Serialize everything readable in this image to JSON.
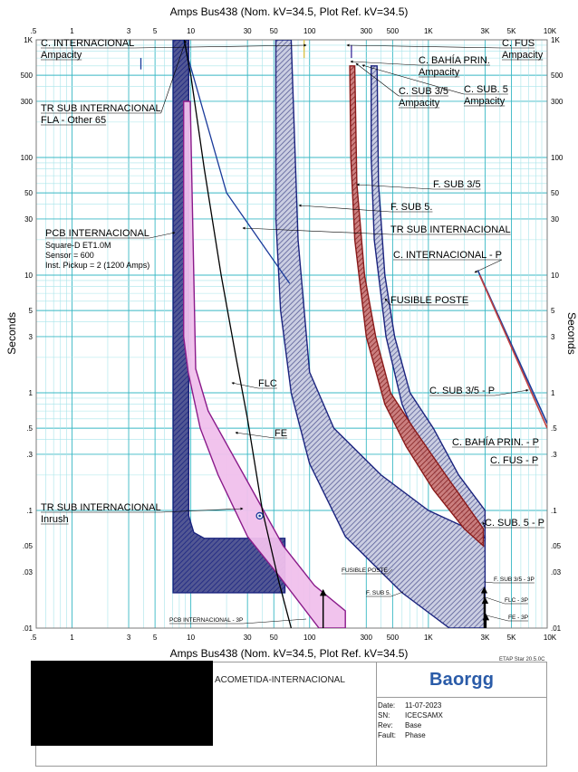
{
  "title": "Amps   Bus438 (Nom. kV=34.5, Plot Ref. kV=34.5)",
  "bottom_title": "Amps   Bus438 (Nom. kV=34.5, Plot Ref. kV=34.5)",
  "ylabel": "Seconds",
  "version": "ETAP Star 20.5.0C",
  "footer": {
    "project": "ACOMETIDA-INTERNACIONAL",
    "logo": "Baorgg",
    "date_label": "Date:",
    "date": "11-07-2023",
    "sn_label": "SN:",
    "sn": "ICECSAMX",
    "rev_label": "Rev:",
    "rev": "Base",
    "fault_label": "Fault:",
    "fault": "Phase"
  },
  "colors": {
    "grid_major": "#38b8c4",
    "grid_minor": "#a8e4ea",
    "navy": "#1a237e",
    "blue": "#1a3a9a",
    "purple": "#8a1a8a",
    "pink": "#f0c0ec",
    "darkred": "#8a1a1a",
    "hatch_light": "#8a8fb8"
  },
  "chart_data": {
    "type": "line",
    "x_scale": "log",
    "y_scale": "log",
    "xlim": [
      0.5,
      10000
    ],
    "ylim": [
      0.01,
      1000
    ],
    "x_ticks": [
      {
        "v": 0.5,
        "t": ".5"
      },
      {
        "v": 1,
        "t": "1"
      },
      {
        "v": 3,
        "t": "3"
      },
      {
        "v": 5,
        "t": "5"
      },
      {
        "v": 10,
        "t": "10"
      },
      {
        "v": 30,
        "t": "30"
      },
      {
        "v": 50,
        "t": "50"
      },
      {
        "v": 100,
        "t": "100"
      },
      {
        "v": 300,
        "t": "300"
      },
      {
        "v": 500,
        "t": "500"
      },
      {
        "v": 1000,
        "t": "1K"
      },
      {
        "v": 3000,
        "t": "3K"
      },
      {
        "v": 5000,
        "t": "5K"
      },
      {
        "v": 10000,
        "t": "10K"
      }
    ],
    "y_ticks": [
      {
        "v": 1000,
        "t": "1K"
      },
      {
        "v": 500,
        "t": "500"
      },
      {
        "v": 300,
        "t": "300"
      },
      {
        "v": 100,
        "t": "100"
      },
      {
        "v": 50,
        "t": "50"
      },
      {
        "v": 30,
        "t": "30"
      },
      {
        "v": 10,
        "t": "10"
      },
      {
        "v": 5,
        "t": "5"
      },
      {
        "v": 3,
        "t": "3"
      },
      {
        "v": 1,
        "t": "1"
      },
      {
        "v": 0.5,
        "t": ".5"
      },
      {
        "v": 0.3,
        "t": ".3"
      },
      {
        "v": 0.1,
        "t": ".1"
      },
      {
        "v": 0.05,
        "t": ".05"
      },
      {
        "v": 0.03,
        "t": ".03"
      },
      {
        "v": 0.01,
        "t": ".01"
      }
    ],
    "bands": [
      {
        "name": "PCB INTERNACIONAL",
        "color": "#1a237e",
        "fill": "hatch-navy",
        "points": [
          [
            7.1,
            1000
          ],
          [
            9.6,
            1000
          ],
          [
            9.6,
            0.09
          ],
          [
            10.6,
            0.065
          ],
          [
            13,
            0.058
          ],
          [
            62,
            0.058
          ],
          [
            62,
            0.02
          ],
          [
            7.1,
            0.02
          ]
        ]
      },
      {
        "name": "F. SUB 5.",
        "color": "#1a237e",
        "fill": "hatch-light",
        "points": [
          [
            52,
            1000
          ],
          [
            70,
            1000
          ],
          [
            80,
            20
          ],
          [
            100,
            1.5
          ],
          [
            160,
            0.5
          ],
          [
            400,
            0.2
          ],
          [
            1000,
            0.1
          ],
          [
            3000,
            0.06
          ],
          [
            3000,
            0.01
          ],
          [
            1500,
            0.01
          ],
          [
            600,
            0.02
          ],
          [
            200,
            0.06
          ],
          [
            100,
            0.25
          ],
          [
            70,
            1
          ],
          [
            57,
            5
          ],
          [
            52,
            30
          ]
        ]
      },
      {
        "name": "FUSIBLE POSTE",
        "color": "#1a237e",
        "fill": "hatch-light",
        "points": [
          [
            330,
            600
          ],
          [
            370,
            600
          ],
          [
            380,
            60
          ],
          [
            430,
            10
          ],
          [
            520,
            3
          ],
          [
            700,
            1
          ],
          [
            1100,
            0.5
          ],
          [
            1800,
            0.2
          ],
          [
            3000,
            0.1
          ],
          [
            3000,
            0.058
          ],
          [
            2200,
            0.08
          ],
          [
            1400,
            0.15
          ],
          [
            900,
            0.3
          ],
          [
            600,
            0.8
          ],
          [
            440,
            3
          ],
          [
            350,
            20
          ],
          [
            330,
            100
          ]
        ]
      },
      {
        "name": "F. SUB 3/5",
        "color": "#8a1a1a",
        "fill": "hatch-red",
        "points": [
          [
            218,
            600
          ],
          [
            240,
            600
          ],
          [
            250,
            60
          ],
          [
            290,
            10
          ],
          [
            360,
            3
          ],
          [
            480,
            1
          ],
          [
            750,
            0.5
          ],
          [
            1400,
            0.2
          ],
          [
            2900,
            0.07
          ],
          [
            2900,
            0.05
          ],
          [
            2000,
            0.07
          ],
          [
            1100,
            0.15
          ],
          [
            650,
            0.35
          ],
          [
            430,
            0.8
          ],
          [
            300,
            3
          ],
          [
            240,
            20
          ],
          [
            222,
            100
          ]
        ]
      },
      {
        "name": "FE",
        "color": "#8a1a8a",
        "fill": "#f0c0ec",
        "points": [
          [
            8.7,
            300
          ],
          [
            9.9,
            300
          ],
          [
            11,
            1.6
          ],
          [
            14,
            0.7
          ],
          [
            28,
            0.2
          ],
          [
            60,
            0.05
          ],
          [
            110,
            0.023
          ],
          [
            200,
            0.014
          ],
          [
            200,
            0.01
          ],
          [
            120,
            0.01
          ],
          [
            55,
            0.028
          ],
          [
            30,
            0.06
          ],
          [
            17,
            0.2
          ],
          [
            12,
            0.5
          ],
          [
            9.5,
            1.5
          ],
          [
            8.7,
            3
          ]
        ]
      }
    ],
    "curves": [
      {
        "name": "TR SUB INTERNACIONAL",
        "color": "#1a3a9a",
        "points": [
          [
            8.6,
            1000
          ],
          [
            20,
            50
          ],
          [
            68,
            8.5
          ]
        ]
      },
      {
        "name": "FLC",
        "color": "#000000",
        "points": [
          [
            8.8,
            1000
          ],
          [
            10,
            500
          ],
          [
            13,
            80
          ],
          [
            18,
            10
          ],
          [
            24,
            2
          ],
          [
            30,
            0.6
          ],
          [
            40,
            0.1
          ],
          [
            55,
            0.025
          ],
          [
            70,
            0.01
          ]
        ]
      },
      {
        "name": "C. INTERNACIONAL - P",
        "color": "#1a3a9a",
        "points": [
          [
            2600,
            11
          ],
          [
            10000,
            0.55
          ]
        ]
      },
      {
        "name": "C. SUB 3/5 - P",
        "color": "#c04040",
        "points": [
          [
            2700,
            10
          ],
          [
            10000,
            0.5
          ]
        ]
      },
      {
        "name": "FLA - Other 65",
        "color": "#1a3a9a",
        "points": [
          [
            3.8,
            700
          ],
          [
            3.8,
            560
          ]
        ]
      },
      {
        "name": "C. INTERNACIONAL Ampacity",
        "color": "#d9c040",
        "points": [
          [
            90,
            1000
          ],
          [
            90,
            700
          ]
        ]
      },
      {
        "name": "C. FUS Ampacity",
        "color": "#3a2a9a",
        "points": [
          [
            225,
            900
          ],
          [
            225,
            700
          ]
        ]
      }
    ],
    "inrush_point": {
      "name": "TR SUB INTERNACIONAL Inrush",
      "x": 38,
      "y": 0.09
    },
    "arrow_markers": [
      {
        "name": "PCB INTERNACIONAL - 3P",
        "x": 130,
        "y1": 0.01,
        "y2": 0.021
      },
      {
        "name": "F. SUB 3/5 - 3P",
        "x": 2950,
        "y1": 0.01,
        "y2": 0.022
      },
      {
        "name": "FLC - 3P",
        "x": 3000,
        "y1": 0.01,
        "y2": 0.018
      },
      {
        "name": "FE - 3P",
        "x": 3050,
        "y1": 0.01,
        "y2": 0.013
      }
    ],
    "annotations": [
      {
        "lines": [
          "C. INTERNACIONAL",
          "Ampacity"
        ],
        "x": 45,
        "y": 41,
        "underline": true,
        "anchor_x": 338,
        "anchor_y": 50
      },
      {
        "lines": [
          "TR SUB INTERNACIONAL",
          "FLA - Other 65"
        ],
        "x": 45,
        "y": 113,
        "underline": true,
        "anchor_x": 205,
        "anchor_y": 45
      },
      {
        "lines": [
          "PCB INTERNACIONAL"
        ],
        "x": 50,
        "y": 251,
        "underline": true,
        "anchor_x": 193,
        "anchor_y": 257
      },
      {
        "lines": [
          "Square-D  ET1.0M",
          "Sensor = 600",
          "Inst. Pickup = 2 (1200 Amps)"
        ],
        "x": 50,
        "y": 266,
        "underline": false,
        "plain": true
      },
      {
        "lines": [
          "TR SUB INTERNACIONAL",
          "Inrush"
        ],
        "x": 45,
        "y": 554,
        "underline": true,
        "anchor_x": 268,
        "anchor_y": 562
      },
      {
        "lines": [
          "C. FUS",
          "Ampacity"
        ],
        "x": 554,
        "y": 41,
        "underline": true,
        "anchor_x": 383,
        "anchor_y": 50
      },
      {
        "lines": [
          "C. BAHÍA PRIN.",
          "Ampacity"
        ],
        "x": 462,
        "y": 60,
        "underline": true,
        "anchor_x": 387,
        "anchor_y": 68
      },
      {
        "lines": [
          "C. SUB 3/5",
          "Ampacity"
        ],
        "x": 440,
        "y": 94,
        "underline": true,
        "anchor_x": 393,
        "anchor_y": 70
      },
      {
        "lines": [
          "C. SUB. 5",
          "Ampacity"
        ],
        "x": 512,
        "y": 92,
        "underline": true,
        "anchor_x": 400,
        "anchor_y": 72
      },
      {
        "lines": [
          "F. SUB 3/5"
        ],
        "x": 478,
        "y": 197,
        "underline": true,
        "anchor_x": 394,
        "anchor_y": 204
      },
      {
        "lines": [
          "F. SUB 5."
        ],
        "x": 431,
        "y": 222,
        "underline": true,
        "anchor_x": 330,
        "anchor_y": 227
      },
      {
        "lines": [
          "TR SUB INTERNACIONAL"
        ],
        "x": 431,
        "y": 247,
        "underline": true,
        "anchor_x": 268,
        "anchor_y": 252
      },
      {
        "lines": [
          "C. INTERNACIONAL - P"
        ],
        "x": 434,
        "y": 275,
        "underline": true,
        "anchor_x": 524,
        "anchor_y": 301
      },
      {
        "lines": [
          "FUSIBLE POSTE"
        ],
        "x": 431,
        "y": 325,
        "underline": true,
        "anchor_x": 425,
        "anchor_y": 330
      },
      {
        "lines": [
          "FLC"
        ],
        "x": 285,
        "y": 417,
        "underline": true,
        "anchor_x": 256,
        "anchor_y": 423
      },
      {
        "lines": [
          "C. SUB 3/5 - P"
        ],
        "x": 474,
        "y": 425,
        "underline": true,
        "anchor_x": 583,
        "anchor_y": 431
      },
      {
        "lines": [
          "FE"
        ],
        "x": 303,
        "y": 472,
        "underline": true,
        "anchor_x": 260,
        "anchor_y": 478
      },
      {
        "lines": [
          "C. BAHÍA PRIN. - P"
        ],
        "x": 499,
        "y": 482,
        "underline": true
      },
      {
        "lines": [
          "C. FUS - P"
        ],
        "x": 541,
        "y": 502,
        "underline": true
      },
      {
        "lines": [
          "C. SUB. 5 - P"
        ],
        "x": 535,
        "y": 571,
        "underline": true,
        "anchor_x": 533,
        "anchor_y": 577
      }
    ],
    "small_labels": [
      {
        "text": "FUSIBLE POSTE",
        "x": 377,
        "y": 627,
        "anchor_x": 433,
        "anchor_y": 629
      },
      {
        "text": "F. SUB 5.",
        "x": 404,
        "y": 652,
        "anchor_x": 445,
        "anchor_y": 654
      },
      {
        "text": "PCB INTERNACIONAL - 3P",
        "x": 187,
        "y": 682,
        "anchor_x": 338,
        "anchor_y": 684
      },
      {
        "text": "F. SUB 3/5 - 3P",
        "x": 545,
        "y": 637,
        "anchor_x": 535,
        "anchor_y": 643
      },
      {
        "text": "FLC - 3P",
        "x": 557,
        "y": 660,
        "anchor_x": 536,
        "anchor_y": 660
      },
      {
        "text": "FE - 3P",
        "x": 561,
        "y": 679,
        "anchor_x": 537,
        "anchor_y": 680
      }
    ]
  }
}
